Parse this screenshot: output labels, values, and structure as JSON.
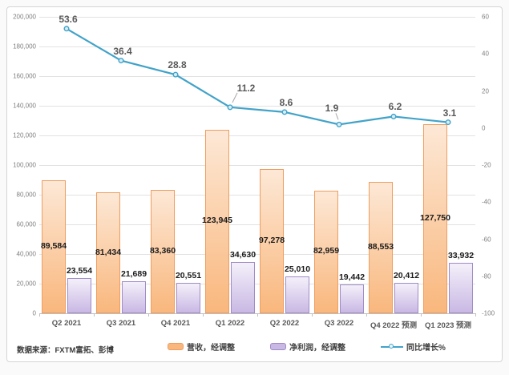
{
  "source_note": "数据来源：FXTM富拓、彭博",
  "legend": {
    "items": [
      {
        "label": "营收，经调整",
        "type": "bar",
        "series_key": "revenue"
      },
      {
        "label": "净利润，经调整",
        "type": "bar",
        "series_key": "profit"
      },
      {
        "label": "同比增长%",
        "type": "line",
        "series_key": "yoy"
      }
    ]
  },
  "chart_data": {
    "type": "combo-bar-line",
    "categories": [
      "Q2 2021",
      "Q3 2021",
      "Q4 2021",
      "Q1 2022",
      "Q2 2022",
      "Q3 2022",
      "Q4 2022 预测",
      "Q1 2023 预测"
    ],
    "series": [
      {
        "name": "营收，经调整",
        "key": "revenue",
        "type": "bar",
        "axis": "left",
        "values": [
          89584,
          81434,
          83360,
          123945,
          97278,
          82959,
          88553,
          127750
        ],
        "labels": [
          "89,584",
          "81,434",
          "83,360",
          "123,945",
          "97,278",
          "82,959",
          "88,553",
          "127,750"
        ]
      },
      {
        "name": "净利润，经调整",
        "key": "profit",
        "type": "bar",
        "axis": "left",
        "values": [
          23554,
          21689,
          20551,
          34630,
          25010,
          19442,
          20412,
          33932
        ],
        "labels": [
          "23,554",
          "21,689",
          "20,551",
          "34,630",
          "25,010",
          "19,442",
          "20,412",
          "33,932"
        ]
      },
      {
        "name": "同比增长%",
        "key": "yoy",
        "type": "line",
        "axis": "right",
        "values": [
          53.6,
          36.4,
          28.8,
          11.2,
          8.6,
          1.9,
          6.2,
          3.1
        ],
        "labels": [
          "53.6",
          "36.4",
          "28.8",
          "11.2",
          "8.6",
          "1.9",
          "6.2",
          "3.1"
        ]
      }
    ],
    "left_axis": {
      "min": 0,
      "max": 200000,
      "step": 20000,
      "tick_labels": [
        "200,000",
        "180,000",
        "160,000",
        "140,000",
        "120,000",
        "100,000",
        "80,000",
        "60,000",
        "40,000",
        "20,000",
        "0"
      ]
    },
    "right_axis": {
      "min": -100,
      "max": 60,
      "step": 20,
      "tick_labels": [
        "60",
        "40",
        "20",
        "0",
        "-20",
        "-40",
        "-60",
        "-80",
        "-100"
      ]
    },
    "grid": "horizontal",
    "legend_position": "bottom"
  },
  "colors": {
    "revenue_fill_top": "#fde8d6",
    "revenue_fill_bottom": "#f9b77d",
    "revenue_border": "#ef9d5f",
    "profit_fill_top": "#f4f0fa",
    "profit_fill_bottom": "#c9b8e4",
    "profit_border": "#a08cc6",
    "line": "#42a3c9",
    "marker_fill": "#d9eef6",
    "leader": "#a6a6a6",
    "grid": "#e2e2e2",
    "axis": "#bfbfbf",
    "tick_text": "#7f7f7f",
    "category_text": "#595959",
    "bar_label": "#1a1a1a",
    "line_label": "#595959",
    "source_text": "#3a3a3a"
  }
}
